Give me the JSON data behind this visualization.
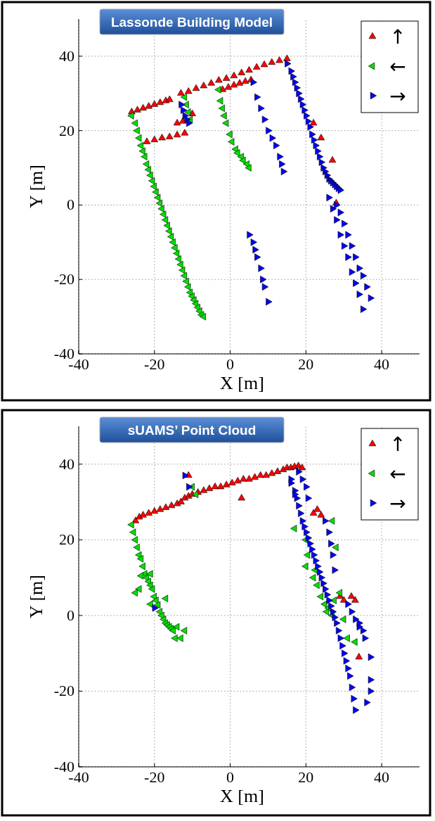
{
  "chart_data": [
    {
      "type": "scatter",
      "title": "Lassonde Building Model",
      "xlabel": "X [m]",
      "ylabel": "Y [m]",
      "xlim": [
        -40,
        50
      ],
      "ylim": [
        -40,
        50
      ],
      "xticks": [
        -40,
        -20,
        0,
        20,
        40
      ],
      "yticks": [
        -40,
        -20,
        0,
        20,
        40
      ],
      "grid": true,
      "legend": "top right",
      "marker": "triangle",
      "series": [
        {
          "name": "↑",
          "color": "#ff0000",
          "x": [
            -26,
            -24.5,
            -23,
            -21.5,
            -20,
            -18.5,
            -17,
            -16,
            -13,
            -11,
            -9,
            -7,
            -5,
            -3,
            -1,
            1,
            3,
            5,
            7,
            9,
            11,
            13,
            15,
            -14,
            -12.5,
            -10,
            -22,
            -20,
            -18,
            -16,
            -14,
            -12,
            -2,
            -0.5,
            1,
            2.5,
            4,
            5.5,
            22,
            24,
            27,
            28
          ],
          "values": [
            25,
            25.5,
            26,
            26.5,
            27,
            27.5,
            28,
            28.3,
            30,
            30.5,
            31.3,
            32,
            32.7,
            33.5,
            34,
            34.7,
            35.5,
            36.2,
            37,
            37.7,
            38.3,
            38.8,
            39.3,
            22,
            22.5,
            24.5,
            17,
            17.5,
            18,
            18.3,
            18.8,
            19.3,
            31,
            31.6,
            32.2,
            32.7,
            33.2,
            33.6,
            22,
            18,
            12,
            0.5
          ]
        },
        {
          "name": "←",
          "color": "#00e000",
          "x": [
            -26,
            -25,
            -24.5,
            -24,
            -23.5,
            -23,
            -22.5,
            -22,
            -21.5,
            -21,
            -20.5,
            -20,
            -19.5,
            -19,
            -18.5,
            -18,
            -17.5,
            -17,
            -16.5,
            -16,
            -15.5,
            -15,
            -14.5,
            -14,
            -13.5,
            -13,
            -12.5,
            -12,
            -11.5,
            -11,
            -10.5,
            -10,
            -9.5,
            -9,
            -8.5,
            -8,
            -7.5,
            -7,
            -12,
            -11.5,
            -11,
            -10.5,
            -3,
            -2.5,
            -2,
            -1.5,
            -1,
            0,
            0.5,
            1.5,
            2,
            3,
            3.5,
            4.5,
            5
          ],
          "values": [
            24,
            22,
            20,
            18,
            16,
            14.5,
            13,
            11,
            9.5,
            8,
            6.5,
            5,
            3.5,
            2,
            0.5,
            -1,
            -2.5,
            -4,
            -5.5,
            -7,
            -8.5,
            -10,
            -11.5,
            -13,
            -14.5,
            -16,
            -17.5,
            -19,
            -20.5,
            -22,
            -23.5,
            -24.5,
            -25.5,
            -26.5,
            -27.5,
            -28.5,
            -29.5,
            -30,
            29,
            27,
            25,
            23,
            31,
            28,
            26,
            24,
            22,
            19,
            17,
            15,
            14,
            13,
            12,
            11,
            10
          ]
        },
        {
          "name": "→",
          "color": "#0000ff",
          "x": [
            -13,
            -12.5,
            -12,
            -11.5,
            -11,
            6,
            7,
            8,
            9,
            10,
            11,
            12,
            13,
            13.5,
            14,
            15,
            16,
            16.5,
            17,
            17.5,
            18,
            18.5,
            19,
            19.5,
            20,
            20.5,
            21,
            21.5,
            22,
            22.5,
            23,
            23.5,
            24,
            24.5,
            25,
            25.5,
            26,
            26.5,
            27,
            27.5,
            28,
            28.5,
            29,
            26,
            27,
            28,
            29,
            30,
            31,
            32,
            33,
            34,
            35,
            28,
            29,
            30,
            31,
            32,
            33,
            34,
            35,
            36,
            37,
            5,
            6,
            6.5,
            7,
            8,
            8.5,
            9,
            10
          ],
          "values": [
            27,
            25.5,
            24,
            23,
            22,
            33,
            29,
            26,
            23,
            20,
            18,
            16,
            13,
            11,
            9,
            38,
            36,
            34.5,
            33,
            31.5,
            30,
            28.5,
            27,
            25.5,
            24,
            22.5,
            21,
            19,
            17.5,
            16,
            14.5,
            13,
            11.5,
            10,
            9,
            8,
            7,
            6.5,
            6,
            5.5,
            5,
            4.5,
            4,
            2,
            -1,
            -4,
            -8,
            -11,
            -14,
            -18,
            -21,
            -24,
            -28,
            0,
            -2,
            -5,
            -8,
            -11,
            -14,
            -17,
            -19,
            -22,
            -25,
            -8,
            -10,
            -12,
            -14,
            -17,
            -20,
            -22,
            -26
          ]
        }
      ]
    },
    {
      "type": "scatter",
      "title": "sUAMS’ Point Cloud",
      "xlabel": "X [m]",
      "ylabel": "Y [m]",
      "xlim": [
        -40,
        50
      ],
      "ylim": [
        -40,
        50
      ],
      "xticks": [
        -40,
        -20,
        0,
        20,
        40
      ],
      "yticks": [
        -40,
        -20,
        0,
        20,
        40
      ],
      "grid": true,
      "legend": "top right",
      "marker": "triangle",
      "series": [
        {
          "name": "↑",
          "color": "#ff0000",
          "x": [
            -25,
            -24,
            -23,
            -21.5,
            -20,
            -18.5,
            -17,
            -15.5,
            -14,
            -13,
            -12,
            -11,
            -10,
            -8.5,
            -7,
            -5.5,
            -4,
            -2.5,
            -1,
            0.5,
            2,
            3.5,
            5,
            6.5,
            8,
            9.5,
            11,
            12.5,
            14,
            15,
            16,
            17,
            18,
            19,
            -11,
            3,
            22,
            23,
            24,
            29,
            30,
            32,
            33,
            34
          ],
          "values": [
            25,
            26,
            26.5,
            27,
            27.5,
            28,
            28.5,
            29,
            29.5,
            30,
            31,
            31.5,
            32,
            32.5,
            33,
            33.5,
            34,
            34,
            34.5,
            35,
            35.5,
            36,
            36,
            36.5,
            37,
            37,
            37.5,
            38,
            38.5,
            39,
            39,
            39.3,
            39.5,
            39,
            37,
            31,
            27,
            28,
            26.5,
            5,
            4,
            5,
            4,
            -11
          ]
        },
        {
          "name": "←",
          "color": "#00e000",
          "x": [
            -26,
            -25.5,
            -25,
            -24.5,
            -24,
            -23.5,
            -23,
            -22.5,
            -22,
            -21.5,
            -21,
            -20.5,
            -20,
            -19.5,
            -19,
            -18.5,
            -18,
            -17.5,
            -17,
            -16.5,
            -16,
            -15.5,
            -15,
            -24,
            -25,
            -21,
            -17,
            -14,
            -12,
            -13,
            -14.5,
            -10,
            -9,
            17,
            20,
            20.5,
            22,
            22.5,
            23,
            24,
            25,
            25.5,
            26,
            27,
            27.5,
            28,
            29,
            30,
            31,
            33,
            -23.5,
            -21,
            27,
            20
          ],
          "values": [
            24,
            22,
            20,
            18,
            16,
            15,
            13,
            11,
            10,
            9,
            8,
            7,
            5,
            4,
            2.8,
            1,
            0,
            -1,
            -2,
            -2.5,
            -3,
            -3.5,
            -4,
            7,
            6,
            3,
            4.5,
            -3,
            -4,
            -6,
            -6,
            34,
            32,
            23,
            20,
            16,
            10,
            12,
            8,
            5,
            3,
            1,
            2,
            0,
            4,
            18,
            6,
            -1,
            -6,
            -7,
            10.5,
            11,
            25,
            13
          ]
        },
        {
          "name": "→",
          "color": "#0000ff",
          "x": [
            16,
            17,
            17.5,
            18,
            18.5,
            19,
            19.5,
            20,
            20.5,
            21,
            21.5,
            22,
            22.5,
            23,
            23.5,
            24,
            24.5,
            25,
            25.5,
            26,
            26.5,
            27,
            27.5,
            28,
            28.5,
            29,
            29.5,
            30,
            30.5,
            31,
            31.5,
            32,
            32.5,
            33,
            18,
            19,
            20,
            20.5,
            25,
            26,
            26.5,
            27,
            27.5,
            31,
            32,
            33,
            34,
            35,
            35.5,
            34,
            37,
            37,
            37,
            36,
            -12,
            -20,
            -11,
            16,
            17
          ],
          "values": [
            35,
            33,
            31,
            29,
            27,
            25,
            23.5,
            22,
            20.5,
            19,
            17.5,
            16,
            14.5,
            13,
            11.5,
            10,
            8.5,
            7,
            5.5,
            4,
            2.5,
            1,
            -0.5,
            -2,
            -4,
            -6,
            -8,
            -10,
            -12,
            -14,
            -16,
            -19,
            -22,
            -25,
            38,
            36,
            34,
            31,
            25,
            22,
            19,
            16,
            12,
            3,
            1,
            -1,
            -3,
            -4,
            -6,
            -2,
            -11,
            -17,
            -20,
            -23,
            37,
            2,
            34,
            36,
            32
          ]
        }
      ]
    }
  ]
}
